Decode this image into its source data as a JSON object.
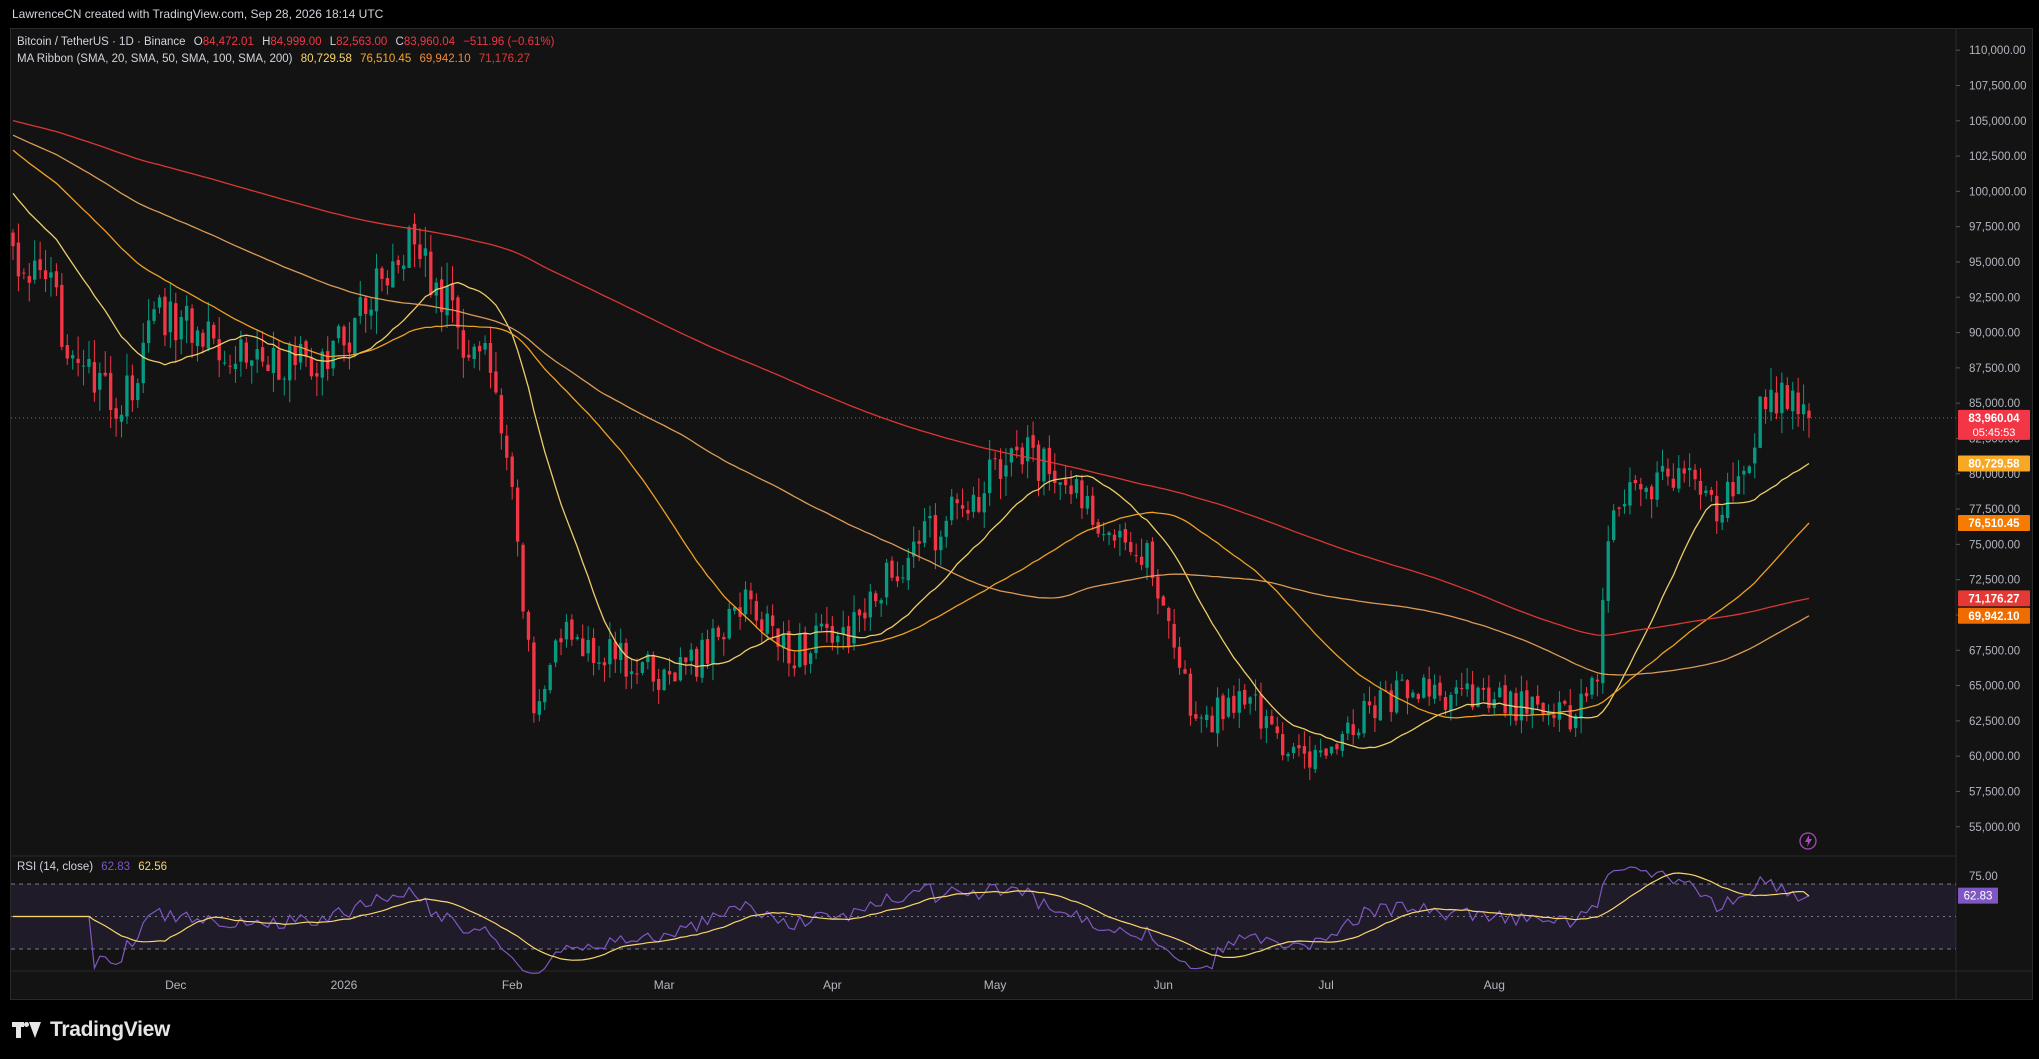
{
  "header": {
    "credit": "LawrenceCN created with TradingView.com, Sep 28, 2026 18:14 UTC"
  },
  "legend": {
    "symbol": "Bitcoin / TetherUS · 1D · Binance",
    "open_label": "O",
    "open": "84,472.01",
    "high_label": "H",
    "high": "84,999.00",
    "low_label": "L",
    "low": "82,563.00",
    "close_label": "C",
    "close": "83,960.04",
    "change": "−511.96 (−0.61%)",
    "ma_title": "MA Ribbon (SMA, 20, SMA, 50, SMA, 100, SMA, 200)",
    "ma_values": [
      "80,729.58",
      "76,510.45",
      "69,942.10",
      "71,176.27"
    ],
    "rsi_title": "RSI (14, close)",
    "rsi_value": "62.83",
    "rsi_ma_value": "62.56"
  },
  "price_tags": [
    {
      "value": "83,960.04",
      "sub": "05:45:53",
      "color": "#f23645"
    },
    {
      "value": "80,729.58",
      "color": "#f9a825"
    },
    {
      "value": "76,510.45",
      "color": "#f57c00"
    },
    {
      "value": "71,176.27",
      "color": "#e53935"
    },
    {
      "value": "69,942.10",
      "color": "#ef6c00"
    }
  ],
  "rsi_tag": "62.83",
  "colors": {
    "up": "#089981",
    "down": "#f23645",
    "sma20": "#f9d66b",
    "sma50": "#f9a825",
    "sma100": "#e6a15a",
    "sma200": "#e53935",
    "rsi": "#7e57c2",
    "rsi_ma": "#f9d66b"
  },
  "footer": {
    "brand": "TradingView",
    "logo_icon": "tradingview-logo-icon"
  },
  "chart_data": {
    "type": "candlestick",
    "title": "Bitcoin / TetherUS · 1D · Binance",
    "interval": "1D",
    "y_axis": {
      "ylim": [
        53000,
        111500
      ],
      "ticks": [
        55000,
        57500,
        60000,
        62500,
        65000,
        67500,
        70000,
        72500,
        75000,
        77500,
        80000,
        82500,
        85000,
        87500,
        90000,
        92500,
        95000,
        97500,
        100000,
        102500,
        105000,
        107500,
        110000
      ],
      "tick_labels": [
        "55,000.00",
        "57,500.00",
        "60,000.00",
        "62,500.00",
        "65,000.00",
        "67,500.00",
        "70,000.00",
        "72,500.00",
        "75,000.00",
        "77,500.00",
        "80,000.00",
        "82,500.00",
        "85,000.00",
        "87,500.00",
        "90,000.00",
        "92,500.00",
        "95,000.00",
        "97,500.00",
        "100,000.00",
        "102,500.00",
        "105,000.00",
        "107,500.00",
        "110,000.00"
      ]
    },
    "x_axis": {
      "start_date": "2025-11-01",
      "end_date": "2026-09-28",
      "month_labels": [
        {
          "date": "2025-12-01",
          "label": "Dec"
        },
        {
          "date": "2026-01-01",
          "label": "2026"
        },
        {
          "date": "2026-02-01",
          "label": "Feb"
        },
        {
          "date": "2026-03-01",
          "label": "Mar"
        },
        {
          "date": "2026-04-01",
          "label": "Apr"
        },
        {
          "date": "2026-05-01",
          "label": "May"
        },
        {
          "date": "2026-06-01",
          "label": "Jun"
        },
        {
          "date": "2026-07-01",
          "label": "Jul"
        },
        {
          "date": "2026-08-01",
          "label": "Aug"
        }
      ]
    },
    "close_anchors": [
      [
        "2025-11-01",
        95500
      ],
      [
        "2025-11-08",
        92500
      ],
      [
        "2025-11-15",
        86500
      ],
      [
        "2025-11-21",
        84500
      ],
      [
        "2025-11-28",
        91500
      ],
      [
        "2025-12-05",
        90500
      ],
      [
        "2025-12-12",
        89000
      ],
      [
        "2025-12-20",
        88000
      ],
      [
        "2025-12-28",
        87500
      ],
      [
        "2026-01-05",
        92000
      ],
      [
        "2026-01-12",
        96500
      ],
      [
        "2026-01-18",
        94000
      ],
      [
        "2026-01-22",
        89500
      ],
      [
        "2026-01-27",
        88500
      ],
      [
        "2026-02-01",
        78000
      ],
      [
        "2026-02-05",
        63500
      ],
      [
        "2026-02-10",
        68500
      ],
      [
        "2026-02-18",
        67500
      ],
      [
        "2026-02-28",
        65500
      ],
      [
        "2026-03-08",
        67000
      ],
      [
        "2026-03-15",
        71000
      ],
      [
        "2026-03-25",
        67500
      ],
      [
        "2026-04-05",
        69000
      ],
      [
        "2026-04-15",
        74500
      ],
      [
        "2026-04-25",
        77500
      ],
      [
        "2026-05-05",
        81500
      ],
      [
        "2026-05-12",
        80000
      ],
      [
        "2026-05-20",
        77000
      ],
      [
        "2026-05-27",
        75500
      ],
      [
        "2026-06-01",
        71500
      ],
      [
        "2026-06-07",
        61500
      ],
      [
        "2026-06-15",
        64500
      ],
      [
        "2026-06-22",
        61500
      ],
      [
        "2026-06-28",
        59000
      ],
      [
        "2026-07-05",
        62500
      ],
      [
        "2026-07-15",
        64500
      ],
      [
        "2026-07-25",
        64000
      ],
      [
        "2026-08-05",
        63500
      ],
      [
        "2026-08-15",
        63000
      ],
      [
        "2026-08-20",
        65500
      ],
      [
        "2026-08-23",
        78500
      ],
      [
        "2026-08-30",
        79500
      ],
      [
        "2026-09-05",
        80000
      ],
      [
        "2026-09-12",
        77000
      ],
      [
        "2026-09-16",
        81000
      ],
      [
        "2026-09-20",
        85500
      ],
      [
        "2026-09-28",
        83960.04
      ]
    ],
    "last": {
      "open": 84472.01,
      "high": 84999.0,
      "low": 82563.0,
      "close": 83960.04,
      "change": -511.96,
      "change_pct": -0.61
    },
    "moving_averages": [
      {
        "name": "SMA 20",
        "last": 80729.58
      },
      {
        "name": "SMA 50",
        "last": 76510.45
      },
      {
        "name": "SMA 100",
        "last": 69942.1
      },
      {
        "name": "SMA 200",
        "last": 71176.27
      }
    ],
    "rsi": {
      "period": 14,
      "last": 62.83,
      "ma_last": 62.56,
      "levels": [
        30,
        50,
        70
      ],
      "tick_labels": [
        "75.00"
      ]
    }
  }
}
